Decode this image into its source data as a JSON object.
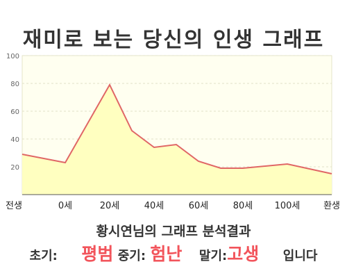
{
  "title": "재미로 보는 당신의 인생 그래프",
  "chart_data": {
    "type": "area",
    "x_categories": [
      "전생",
      "0세",
      "20세",
      "40세",
      "60세",
      "80세",
      "100세",
      "환생"
    ],
    "points": [
      {
        "x": "전생",
        "y": 29
      },
      {
        "x": "0세",
        "y": 23
      },
      {
        "x": "20세",
        "y": 79
      },
      {
        "x": "30세",
        "y": 46
      },
      {
        "x": "40세",
        "y": 34
      },
      {
        "x": "50세",
        "y": 36
      },
      {
        "x": "60세",
        "y": 24
      },
      {
        "x": "70세",
        "y": 19
      },
      {
        "x": "80세",
        "y": 19
      },
      {
        "x": "100세",
        "y": 22
      },
      {
        "x": "환생",
        "y": 15
      }
    ],
    "y_ticks": [
      "20",
      "40",
      "60",
      "80",
      "100"
    ],
    "ylim": [
      0,
      100
    ],
    "grid": true,
    "line_color": "#e06666",
    "fill_color": "#ffffc0",
    "plot_background": "#fffff0"
  },
  "caption": "황시연님의 그래프 분석결과",
  "summary": {
    "early_label": "초기:",
    "early_value": "평범",
    "middle_label": "중기:",
    "middle_value": "험난",
    "late_label": "말기:",
    "late_value": "고생",
    "ending": "입니다"
  },
  "colors": {
    "highlight": "#f2545b",
    "text": "#333333"
  }
}
